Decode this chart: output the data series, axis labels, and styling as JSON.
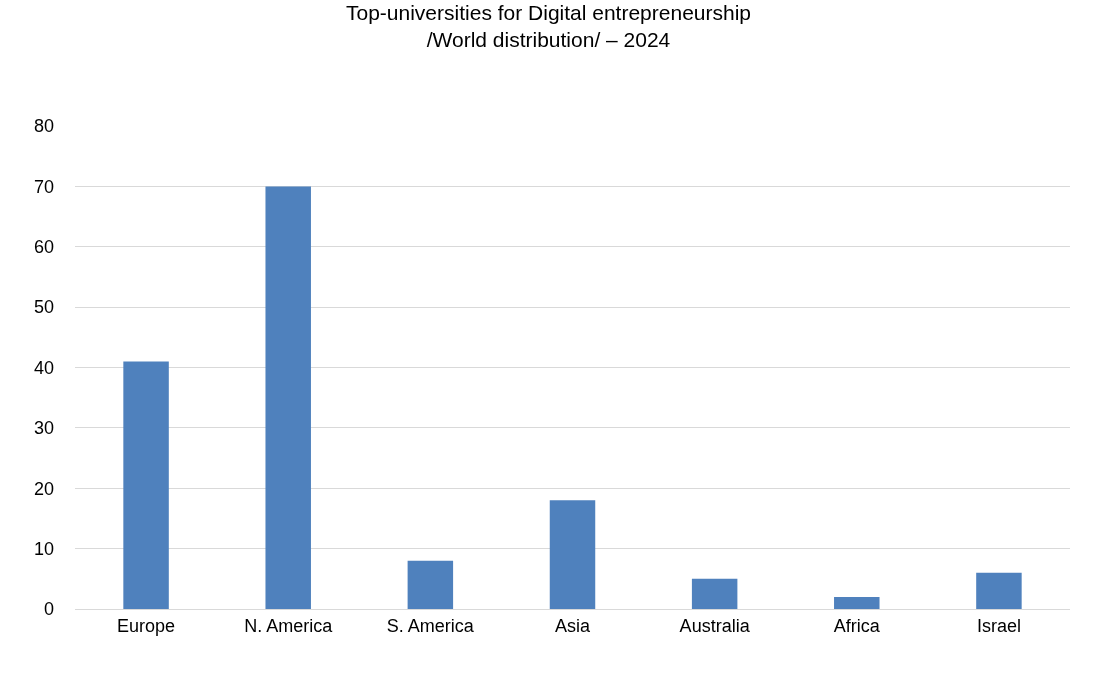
{
  "chart_data": {
    "type": "bar",
    "title": "Top-universities for Digital entrepreneurship\n/World distribution/ – 2024",
    "categories": [
      "Europe",
      "N. America",
      "S. America",
      "Asia",
      "Australia",
      "Africa",
      "Israel"
    ],
    "values": [
      41,
      70,
      8,
      18,
      5,
      2,
      6
    ],
    "color": "#4f81bd",
    "ylim": [
      0,
      80
    ],
    "yticks": [
      0,
      10,
      20,
      30,
      40,
      50,
      60,
      70,
      80
    ],
    "grid": "y"
  }
}
